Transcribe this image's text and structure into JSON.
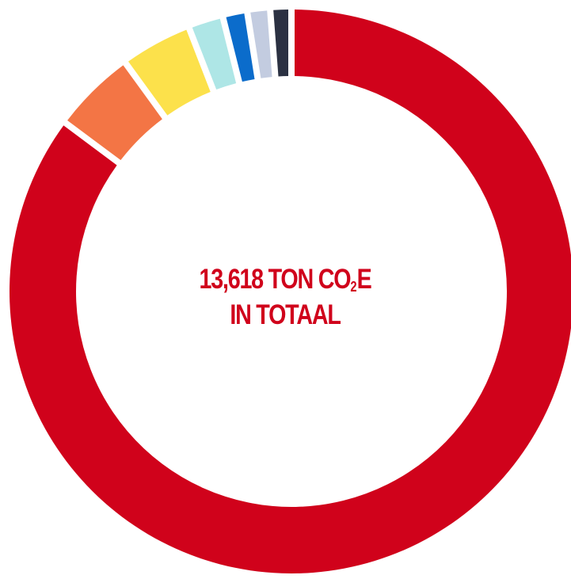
{
  "chart_data": {
    "type": "pie",
    "donut": true,
    "slices": [
      {
        "value": 85.2,
        "color": "#D0021B"
      },
      {
        "value": 4.8,
        "color": "#F37545"
      },
      {
        "value": 4.1,
        "color": "#FCE14B"
      },
      {
        "value": 2.0,
        "color": "#AEE6E6"
      },
      {
        "value": 1.4,
        "color": "#0B6CCB"
      },
      {
        "value": 1.3,
        "color": "#C3CCE0"
      },
      {
        "value": 1.2,
        "color": "#2B3142"
      }
    ],
    "center_text": {
      "line1_prefix": "13,618 TON CO",
      "line1_sub": "2",
      "line1_suffix": "E",
      "line2": "IN TOTAAL",
      "color": "#D0021B"
    }
  }
}
